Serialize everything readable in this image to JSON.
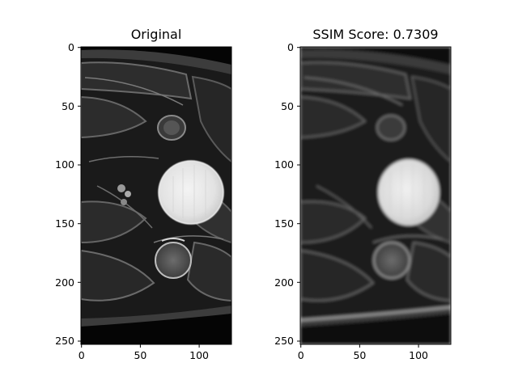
{
  "figure": {
    "panels": [
      {
        "title": "Original",
        "x_ticks": [
          "0",
          "50",
          "100"
        ],
        "y_ticks": [
          "0",
          "50",
          "100",
          "150",
          "200",
          "250"
        ]
      },
      {
        "title": "SSIM Score: 0.7309",
        "x_ticks": [
          "0",
          "50",
          "100"
        ],
        "y_ticks": [
          "0",
          "50",
          "100",
          "150",
          "200",
          "250"
        ]
      }
    ]
  }
}
